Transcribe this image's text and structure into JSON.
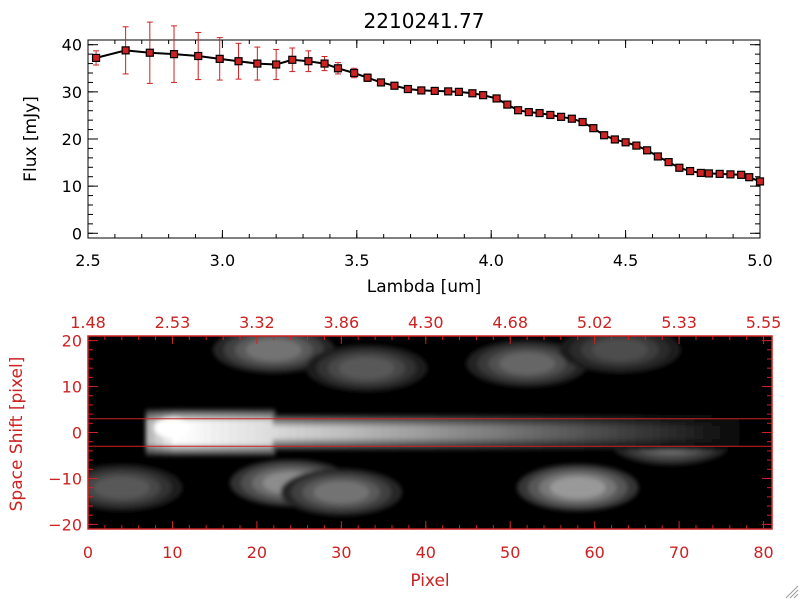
{
  "top_title": "2210241.77",
  "colors": {
    "red": "#cc2222",
    "black": "#000000",
    "marker": "#cc2222"
  },
  "chart_data": [
    {
      "type": "line",
      "title": "2210241.77",
      "xlabel": "Lambda [um]",
      "ylabel": "Flux [mJy]",
      "xlim": [
        2.5,
        5.0
      ],
      "ylim": [
        -1,
        41
      ],
      "xticks": [
        2.5,
        3.0,
        3.5,
        4.0,
        4.5,
        5.0
      ],
      "xtick_labels": [
        "2.5",
        "3.0",
        "3.5",
        "4.0",
        "4.5",
        "5.0"
      ],
      "yticks": [
        0,
        10,
        20,
        30,
        40
      ],
      "ytick_labels": [
        "0",
        "10",
        "20",
        "30",
        "40"
      ],
      "series": [
        {
          "x": [
            2.53,
            2.64,
            2.73,
            2.82,
            2.91,
            2.99,
            3.06,
            3.13,
            3.2,
            3.26,
            3.32,
            3.38,
            3.43,
            3.49,
            3.54,
            3.59,
            3.64,
            3.69,
            3.74,
            3.79,
            3.84,
            3.88,
            3.93,
            3.97,
            4.02,
            4.06,
            4.1,
            4.14,
            4.18,
            4.22,
            4.26,
            4.3,
            4.34,
            4.38,
            4.42,
            4.46,
            4.5,
            4.54,
            4.58,
            4.62,
            4.66,
            4.7,
            4.74,
            4.78,
            4.81,
            4.85,
            4.89,
            4.93,
            4.96,
            5.0
          ],
          "y": [
            37.2,
            38.8,
            38.3,
            38.0,
            37.6,
            37.0,
            36.5,
            36.0,
            35.8,
            36.8,
            36.5,
            36.0,
            35.0,
            34.0,
            33.0,
            32.0,
            31.3,
            30.6,
            30.3,
            30.2,
            30.1,
            30.0,
            29.7,
            29.3,
            28.6,
            27.3,
            26.1,
            25.7,
            25.5,
            25.1,
            24.7,
            24.3,
            23.6,
            22.3,
            20.8,
            19.9,
            19.3,
            18.6,
            17.6,
            16.3,
            15.1,
            13.9,
            13.2,
            12.8,
            12.7,
            12.6,
            12.5,
            12.4,
            11.9,
            11.0
          ],
          "yerr": [
            1.5,
            5.0,
            6.5,
            6.0,
            5.0,
            4.5,
            3.8,
            3.5,
            3.2,
            2.5,
            2.2,
            1.5,
            1.2,
            1.0,
            0.8,
            0.7,
            0.6,
            0.5,
            0.5,
            0.5,
            0.5,
            0.5,
            0.5,
            0.5,
            0.5,
            0.5,
            0.5,
            0.5,
            0.5,
            0.5,
            0.5,
            0.5,
            0.5,
            0.5,
            0.5,
            0.5,
            0.5,
            0.5,
            0.5,
            0.5,
            0.5,
            0.5,
            0.5,
            0.5,
            0.5,
            0.5,
            0.5,
            0.5,
            0.5,
            0.5
          ]
        }
      ]
    },
    {
      "type": "heatmap",
      "xlabel": "Pixel",
      "ylabel": "Space Shift [pixel]",
      "xlim": [
        0,
        81
      ],
      "ylim": [
        -21,
        21
      ],
      "xticks": [
        0,
        10,
        20,
        30,
        40,
        50,
        60,
        70,
        80
      ],
      "xtick_labels": [
        "0",
        "10",
        "20",
        "30",
        "40",
        "50",
        "60",
        "70",
        "80"
      ],
      "yticks": [
        -20,
        -10,
        0,
        10,
        20
      ],
      "ytick_labels": [
        "−20",
        "−10",
        "0",
        "10",
        "20"
      ],
      "top_axis_ticks": [
        0,
        10,
        20,
        30,
        40,
        50,
        60,
        70,
        80
      ],
      "top_axis_labels": [
        "1.48",
        "2.53",
        "3.32",
        "3.86",
        "4.30",
        "4.68",
        "5.02",
        "5.33",
        "5.55"
      ],
      "extraction_lines": [
        3,
        -3
      ],
      "trace": {
        "start": 7,
        "end": 76,
        "center": 0,
        "peak_pixel": 10
      },
      "blobs": [
        {
          "x": 10,
          "y": 1,
          "peak": 1.0
        },
        {
          "x": 22,
          "y": 18,
          "peak": 0.45
        },
        {
          "x": 33,
          "y": 14,
          "peak": 0.35
        },
        {
          "x": 52,
          "y": 15,
          "peak": 0.4
        },
        {
          "x": 63,
          "y": 18,
          "peak": 0.3
        },
        {
          "x": 69,
          "y": -2,
          "peak": 0.45
        },
        {
          "x": 4,
          "y": -12,
          "peak": 0.35
        },
        {
          "x": 24,
          "y": -11,
          "peak": 0.55
        },
        {
          "x": 30,
          "y": -13,
          "peak": 0.45
        },
        {
          "x": 58,
          "y": -12,
          "peak": 0.6
        }
      ]
    }
  ]
}
